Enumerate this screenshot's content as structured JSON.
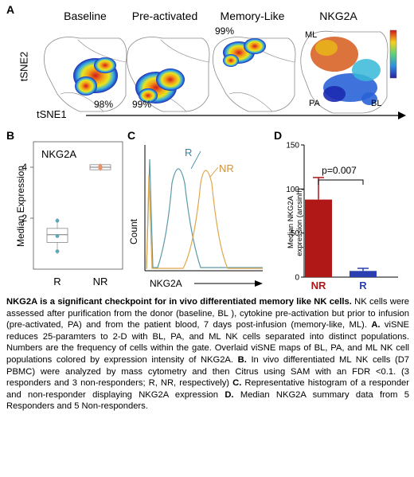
{
  "panel_a": {
    "letter": "A",
    "maps": [
      {
        "title": "Baseline",
        "percent": "98%"
      },
      {
        "title": "Pre-activated",
        "percent": "99%"
      },
      {
        "title": "Memory-Like",
        "percent": "99%"
      },
      {
        "title": "NKG2A",
        "percent": ""
      }
    ],
    "nkg2a_region_labels": {
      "ml": "ML",
      "pa": "PA",
      "bl": "BL"
    },
    "ylabel": "tSNE2",
    "xlabel": "tSNE1"
  },
  "panel_b": {
    "letter": "B",
    "inset_label": "NKG2A",
    "ylabel": "Median Expression",
    "chart_data": {
      "type": "box",
      "categories": [
        "R",
        "NR"
      ],
      "ylim": [
        0,
        5
      ],
      "yticks": [
        2,
        4
      ],
      "boxes": [
        {
          "category": "R",
          "q1": 1.05,
          "median": 1.35,
          "q3": 1.6,
          "min": 0.6,
          "max": 2.0,
          "points": [
            0.7,
            1.3,
            1.9
          ]
        },
        {
          "category": "NR",
          "q1": 3.9,
          "median": 4.0,
          "q3": 4.1,
          "min": 3.85,
          "max": 4.15,
          "points": [
            3.95,
            4.0,
            4.05
          ]
        }
      ],
      "colors": {
        "R": "#5ba7b5",
        "NR": "#e8926a"
      }
    }
  },
  "panel_c": {
    "letter": "C",
    "ylabel": "Count",
    "xlabel": "NKG2A",
    "chart_data": {
      "type": "histogram",
      "series": [
        {
          "name": "R",
          "color": "#5b9aa8"
        },
        {
          "name": "NR",
          "color": "#e0a74a"
        }
      ]
    }
  },
  "panel_d": {
    "letter": "D",
    "ylabel_line1": "Median NKG2A",
    "ylabel_line2": "expression (arcsinh)",
    "pvalue": "p=0.007",
    "chart_data": {
      "type": "bar",
      "categories": [
        "NR",
        "R"
      ],
      "values": [
        88,
        7
      ],
      "errors": [
        25,
        3
      ],
      "ylim": [
        0,
        150
      ],
      "yticks": [
        0,
        50,
        100,
        150
      ],
      "colors": [
        "#b01717",
        "#2b3fb0"
      ]
    }
  },
  "caption": {
    "bold": "NKG2A is a significant checkpoint for in vivo differentiated memory like NK cells.",
    "p1": " NK cells were assessed after purification from the donor (baseline, BL ), cytokine pre-activation but prior to infusion (pre-activated, PA) and from the patient blood, 7 days post-infusion (memory-like, ML). ",
    "a_label": "A.",
    "p2": " viSNE reduces 25-paramters to 2-D with BL, PA, and ML NK cells separated into distinct populations. Numbers are the frequency of cells within the gate. Overlaid viSNE maps of BL, PA, and ML NK cell populations colored by expression intensity of NKG2A. ",
    "b_label": "B.",
    "p3": " In vivo differentiated ML NK cells (D7 PBMC) were analyzed by mass cytometry and then Citrus using SAM with an FDR <0.1. (3 responders and 3 non-responders; R, NR, respectively) ",
    "c_label": "C.",
    "p4": " Representative histogram of a responder and non-responder displaying NKG2A expression ",
    "d_label": "D.",
    "p5": " Median NKG2A summary data from 5 Responders and 5 Non-responders."
  }
}
